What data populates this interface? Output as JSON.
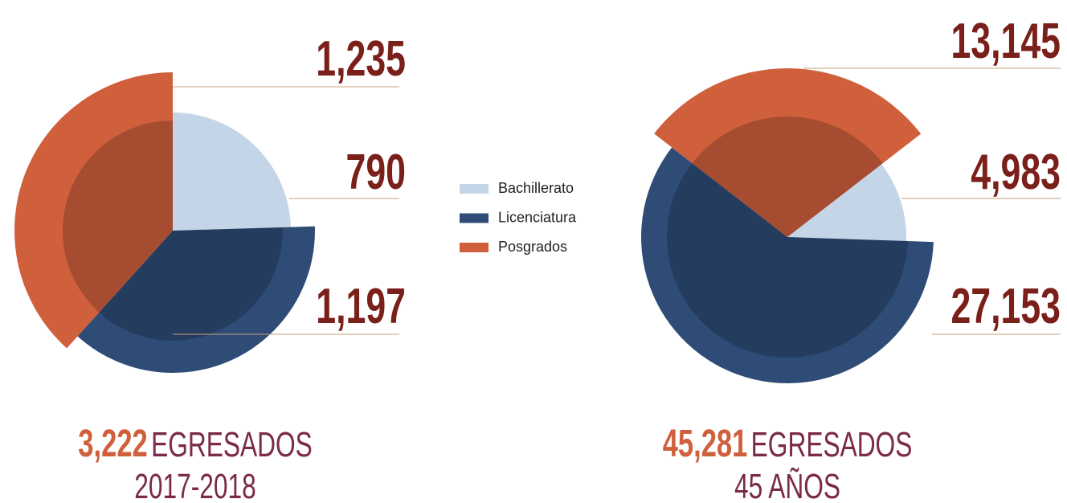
{
  "chart_data": [
    {
      "type": "pie",
      "categories": [
        "Bachillerato",
        "Licenciatura",
        "Posgrados"
      ],
      "values": [
        790,
        1197,
        1235
      ],
      "value_labels": [
        "790",
        "1,197",
        "1,235"
      ],
      "colors": [
        "#c5d5e8",
        "#2e4c76",
        "#d05f3c"
      ],
      "total": 3222,
      "total_label": "3,222",
      "caption": "EGRESADOS",
      "subtitle": "2017-2018"
    },
    {
      "type": "pie",
      "categories": [
        "Bachillerato",
        "Licenciatura",
        "Posgrados"
      ],
      "values": [
        4983,
        27153,
        13145
      ],
      "value_labels": [
        "4,983",
        "27,153",
        "13,145"
      ],
      "colors": [
        "#c5d5e8",
        "#2e4c76",
        "#d05f3c"
      ],
      "total": 45281,
      "total_label": "45,281",
      "caption": "EGRESADOS",
      "subtitle": "45 AÑOS"
    }
  ]
}
